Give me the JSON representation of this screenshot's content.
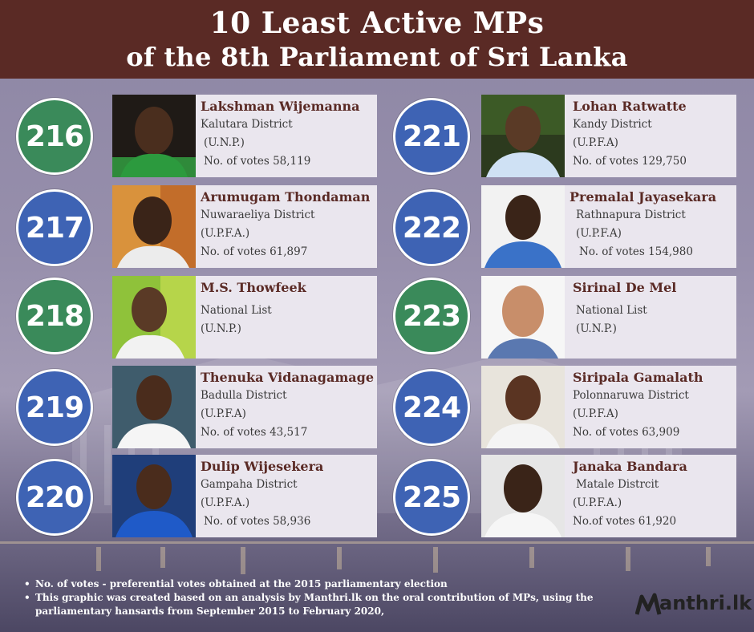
{
  "header": {
    "title_line1": "10 Least Active MPs",
    "title_line2": "of the 8th Parliament of Sri Lanka"
  },
  "mps_left": [
    {
      "rank": "216",
      "name": "Lakshman Wijemanna",
      "line1": "Kalutara District",
      "line2": "(U.N.P.)",
      "line3": "No. of votes 58,119",
      "badge_color": "#3a8a5a"
    },
    {
      "rank": "217",
      "name": "Arumugam Thondaman",
      "line1": "Nuwaraeliya District",
      "line2": "(U.P.F.A.)",
      "line3": "No. of votes 61,897",
      "badge_color": "#3e63b4"
    },
    {
      "rank": "218",
      "name": "M.S. Thowfeek",
      "line1": "National List",
      "line2": "(U.N.P.)",
      "line3": "",
      "badge_color": "#3a8a5a"
    },
    {
      "rank": "219",
      "name": "Thenuka Vidanagamage",
      "line1": "Badulla District",
      "line2": "(U.P.F.A)",
      "line3": "No. of votes 43,517",
      "badge_color": "#3e63b4"
    },
    {
      "rank": "220",
      "name": "Dulip Wijesekera",
      "line1": "Gampaha District",
      "line2": "(U.P.F.A.)",
      "line3": "No. of votes 58,936",
      "badge_color": "#3e63b4"
    }
  ],
  "mps_right": [
    {
      "rank": "221",
      "name": "Lohan Ratwatte",
      "line1": "Kandy District",
      "line2": "(U.P.F.A)",
      "line3": "No. of votes 129,750",
      "badge_color": "#3e63b4"
    },
    {
      "rank": "222",
      "name": "Premalal Jayasekara",
      "line1": "Rathnapura District",
      "line2": "(U.P.F.A)",
      "line3": "No. of votes 154,980",
      "badge_color": "#3e63b4"
    },
    {
      "rank": "223",
      "name": "Sirinal De Mel",
      "line1": "National List",
      "line2": "(U.N.P.)",
      "line3": "",
      "badge_color": "#3a8a5a"
    },
    {
      "rank": "224",
      "name": "Siripala Gamalath",
      "line1": "Polonnaruwa District",
      "line2": "(U.P.F.A)",
      "line3": "No. of votes 63,909",
      "badge_color": "#3e63b4"
    },
    {
      "rank": "225",
      "name": "Janaka Bandara",
      "line1": "Matale Distrcit",
      "line2": "(U.P.F.A.)",
      "line3": "No.of votes 61,920",
      "badge_color": "#3e63b4"
    }
  ],
  "footer": {
    "note1": "No. of votes - preferential votes obtained at the 2015 parliamentary election",
    "note2": "This graphic was created based on an analysis by Manthri.lk on the oral contribution of MPs, using the parliamentary hansards from September 2015  to February 2020,"
  },
  "logo": {
    "text": "anthri.lk",
    "mark_icon": "m-check-icon"
  }
}
